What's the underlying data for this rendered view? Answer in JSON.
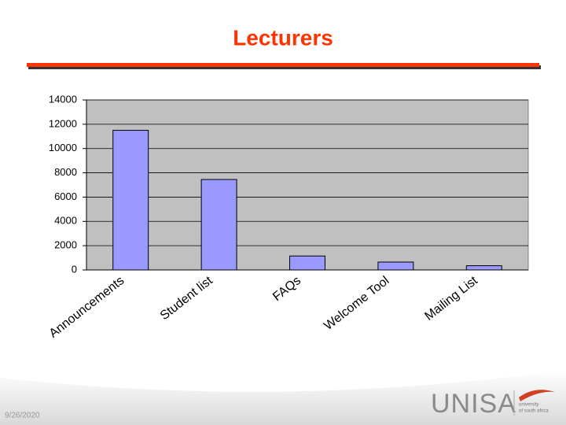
{
  "chart_data": {
    "type": "bar",
    "title": "Lecturers",
    "categories": [
      "Announcements",
      "Student list",
      "FAQs",
      "Welcome Tool",
      "Mailing List"
    ],
    "values": [
      11500,
      7450,
      1150,
      650,
      350
    ],
    "color": "#9999ff",
    "ylim": [
      0,
      14000
    ],
    "yticks": [
      0,
      2000,
      4000,
      6000,
      8000,
      10000,
      12000,
      14000
    ],
    "grid": true
  },
  "footer": {
    "date": "9/26/2020",
    "logo": "UNISA",
    "logo_sub_1": "university",
    "logo_sub_2": "of south africa"
  }
}
